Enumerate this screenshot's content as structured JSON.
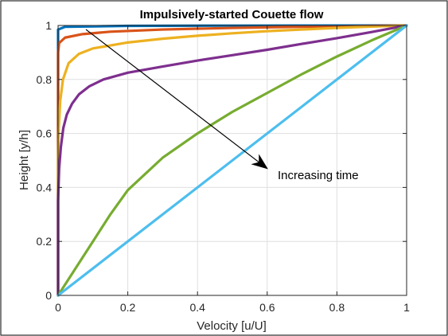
{
  "chart_data": {
    "type": "line",
    "title": "Impulsively-started Couette flow",
    "xlabel": "Velocity [u/U]",
    "ylabel": "Height [y/h]",
    "xlim": [
      0,
      1
    ],
    "ylim": [
      0,
      1
    ],
    "xticks": [
      "0",
      "0.2",
      "0.4",
      "0.6",
      "0.8",
      "1"
    ],
    "yticks": [
      "0",
      "0.2",
      "0.4",
      "0.6",
      "0.8",
      "1"
    ],
    "grid": true,
    "annotation": {
      "text": "Increasing time",
      "arrow_from": [
        0.08,
        0.985
      ],
      "arrow_to": [
        0.6,
        0.47
      ],
      "text_at": [
        0.63,
        0.43
      ]
    },
    "series": [
      {
        "color": "#0072BD",
        "points": [
          [
            0.0,
            0.0
          ],
          [
            0.0,
            0.96
          ],
          [
            0.0,
            0.985
          ],
          [
            0.02,
            0.995
          ],
          [
            0.2,
            0.9985
          ],
          [
            0.5,
            0.9995
          ],
          [
            1.0,
            1.0
          ]
        ]
      },
      {
        "color": "#D95319",
        "points": [
          [
            0.0,
            0.0
          ],
          [
            0.0,
            0.85
          ],
          [
            0.0,
            0.9
          ],
          [
            0.003,
            0.935
          ],
          [
            0.02,
            0.955
          ],
          [
            0.07,
            0.968
          ],
          [
            0.15,
            0.977
          ],
          [
            0.3,
            0.985
          ],
          [
            0.5,
            0.991
          ],
          [
            0.7,
            0.995
          ],
          [
            1.0,
            1.0
          ]
        ]
      },
      {
        "color": "#EDB120",
        "points": [
          [
            0.0,
            0.0
          ],
          [
            0.0,
            0.5
          ],
          [
            0.002,
            0.62
          ],
          [
            0.006,
            0.72
          ],
          [
            0.014,
            0.8
          ],
          [
            0.03,
            0.86
          ],
          [
            0.06,
            0.895
          ],
          [
            0.1,
            0.915
          ],
          [
            0.2,
            0.937
          ],
          [
            0.3,
            0.951
          ],
          [
            0.4,
            0.962
          ],
          [
            0.5,
            0.971
          ],
          [
            0.6,
            0.979
          ],
          [
            0.7,
            0.985
          ],
          [
            0.8,
            0.991
          ],
          [
            0.9,
            0.996
          ],
          [
            1.0,
            1.0
          ]
        ]
      },
      {
        "color": "#7E2F8E",
        "points": [
          [
            0.0,
            0.0
          ],
          [
            0.0,
            0.35
          ],
          [
            0.003,
            0.47
          ],
          [
            0.008,
            0.55
          ],
          [
            0.015,
            0.62
          ],
          [
            0.025,
            0.67
          ],
          [
            0.04,
            0.71
          ],
          [
            0.06,
            0.745
          ],
          [
            0.09,
            0.775
          ],
          [
            0.13,
            0.8
          ],
          [
            0.2,
            0.825
          ],
          [
            0.3,
            0.848
          ],
          [
            0.4,
            0.87
          ],
          [
            0.5,
            0.89
          ],
          [
            0.6,
            0.91
          ],
          [
            0.7,
            0.932
          ],
          [
            0.8,
            0.953
          ],
          [
            0.9,
            0.976
          ],
          [
            1.0,
            1.0
          ]
        ]
      },
      {
        "color": "#77AC30",
        "points": [
          [
            0.0,
            0.0
          ],
          [
            0.05,
            0.1
          ],
          [
            0.1,
            0.2
          ],
          [
            0.15,
            0.3
          ],
          [
            0.2,
            0.39
          ],
          [
            0.25,
            0.45
          ],
          [
            0.3,
            0.51
          ],
          [
            0.35,
            0.555
          ],
          [
            0.4,
            0.6
          ],
          [
            0.45,
            0.64
          ],
          [
            0.5,
            0.68
          ],
          [
            0.6,
            0.75
          ],
          [
            0.7,
            0.82
          ],
          [
            0.8,
            0.885
          ],
          [
            0.9,
            0.945
          ],
          [
            1.0,
            1.0
          ]
        ]
      },
      {
        "color": "#4DBEEE",
        "points": [
          [
            0.0,
            0.0
          ],
          [
            1.0,
            1.0
          ]
        ]
      }
    ]
  }
}
